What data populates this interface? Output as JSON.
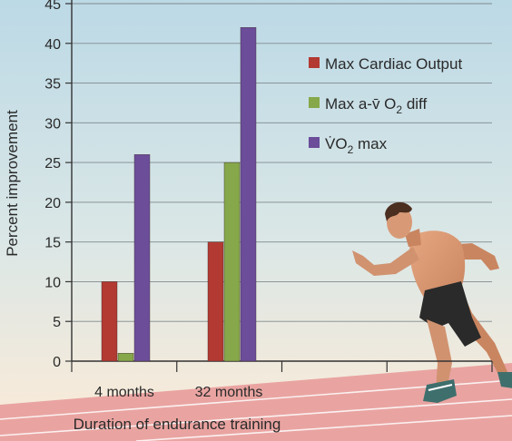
{
  "chart_data": {
    "type": "bar",
    "title": "",
    "xlabel": "Duration of endurance training",
    "ylabel": "Percent improvement",
    "ylim": [
      0,
      45
    ],
    "yticks": [
      0,
      5,
      10,
      15,
      20,
      25,
      30,
      35,
      40,
      45
    ],
    "categories": [
      "4 months",
      "32 months"
    ],
    "grid": true,
    "legend_position": "top-right",
    "series": [
      {
        "name": "Max Cardiac Output",
        "color": "#b23a32",
        "values": [
          10,
          15
        ]
      },
      {
        "name": "Max a-v̄ O2 diff",
        "color": "#86a84a",
        "values": [
          1,
          25
        ]
      },
      {
        "name": "V̇O2 max",
        "color": "#6b4d9a",
        "values": [
          26,
          42
        ]
      }
    ]
  },
  "legend": {
    "cardiac": {
      "text": "Max Cardiac Output"
    },
    "avo2": {
      "main": "Max a-v̄ O",
      "sub": "2",
      "tail": " diff"
    },
    "vo2": {
      "main": "V̇O",
      "sub": "2",
      "tail": " max"
    }
  },
  "colors": {
    "sky_top": "#bcd9e6",
    "sky_bottom": "#fdebd7",
    "track": "#e9a4a1",
    "track_lines": "#ffffff"
  },
  "illustration": {
    "icon": "sprinter-icon"
  }
}
